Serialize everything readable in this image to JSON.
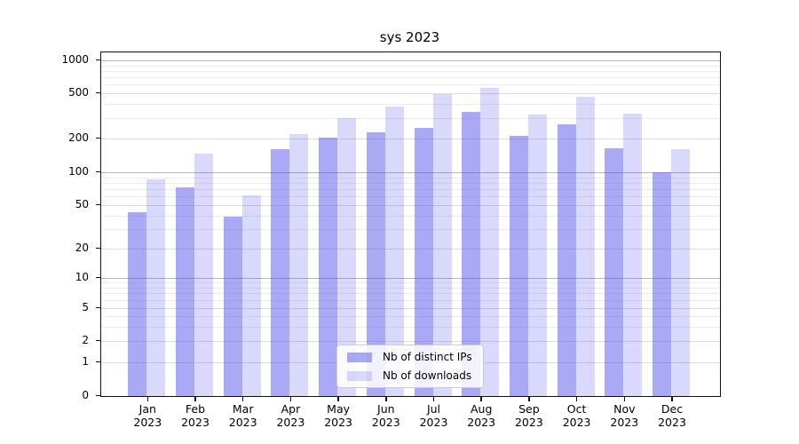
{
  "chart_data": {
    "type": "bar",
    "title": "sys 2023",
    "categories": [
      "Jan 2023",
      "Feb 2023",
      "Mar 2023",
      "Apr 2023",
      "May 2023",
      "Jun 2023",
      "Jul 2023",
      "Aug 2023",
      "Sep 2023",
      "Oct 2023",
      "Nov 2023",
      "Dec 2023"
    ],
    "series": [
      {
        "name": "Nb of distinct IPs",
        "color": "rgba(84,84,235,0.5)",
        "values": [
          43,
          73,
          39,
          160,
          205,
          228,
          250,
          340,
          212,
          265,
          165,
          100
        ]
      },
      {
        "name": "Nb of downloads",
        "color": "rgba(84,84,235,0.22)",
        "values": [
          86,
          147,
          62,
          218,
          300,
          380,
          490,
          560,
          325,
          465,
          330,
          160
        ]
      }
    ],
    "yscale": "symlog",
    "ylim": [
      0,
      1000
    ],
    "yticks": [
      0,
      1,
      2,
      5,
      10,
      20,
      50,
      100,
      200,
      500,
      1000
    ],
    "xlabel": "",
    "ylabel": "",
    "grid": true,
    "legend_position": "lower center"
  },
  "colors": {
    "bar_distinct_ips": "rgba(84,84,235,0.5)",
    "bar_downloads": "rgba(84,84,235,0.22)",
    "grid_major": "#b5b5b5",
    "grid_mid": "#dcdcdc",
    "grid_minor": "#ececec"
  }
}
